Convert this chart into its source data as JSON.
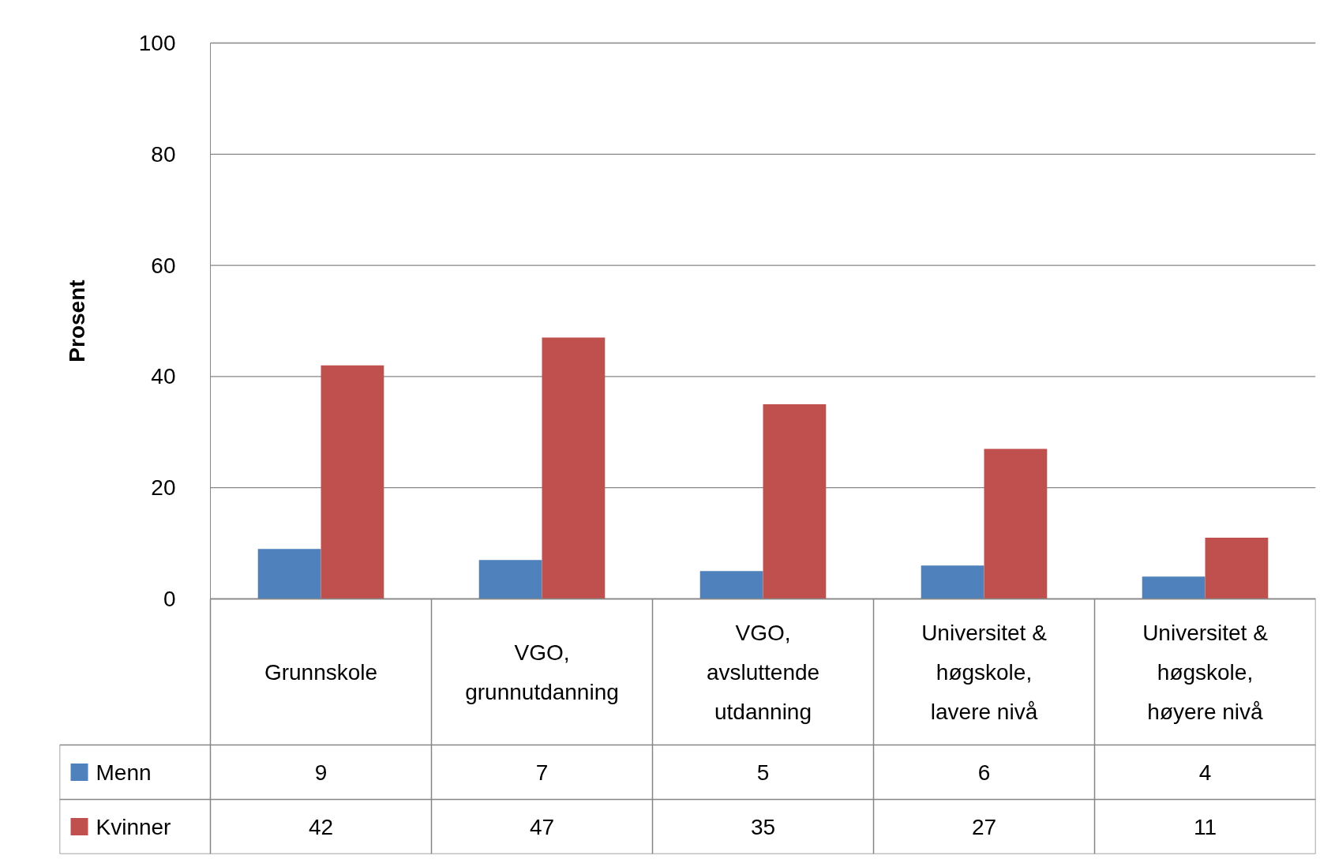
{
  "chart_data": {
    "type": "bar",
    "ylabel": "Prosent",
    "categories": [
      "Grunnskole",
      "VGO, grunnutdanning",
      "VGO, avsluttende utdanning",
      "Universitet & høgskole, lavere nivå",
      "Universitet & høgskole, høyere nivå"
    ],
    "series": [
      {
        "name": "Menn",
        "color": "#4f81bd",
        "values": [
          9,
          7,
          5,
          6,
          4
        ]
      },
      {
        "name": "Kvinner",
        "color": "#c0504d",
        "values": [
          42,
          47,
          35,
          27,
          11
        ]
      }
    ],
    "ylim": [
      0,
      100
    ],
    "yticks": [
      0,
      20,
      40,
      60,
      80,
      100
    ],
    "grid": "y",
    "legend": "bottom",
    "data_labels": true
  }
}
